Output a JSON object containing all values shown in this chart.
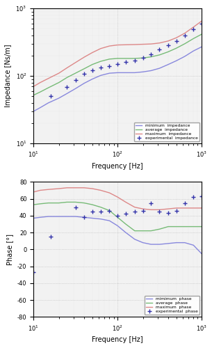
{
  "freq_model": [
    10,
    12,
    15,
    20,
    25,
    31.5,
    40,
    50,
    63,
    80,
    100,
    125,
    160,
    200,
    250,
    315,
    400,
    500,
    630,
    800,
    1000
  ],
  "imp_min": [
    30,
    34,
    40,
    47,
    55,
    65,
    78,
    90,
    102,
    110,
    112,
    112,
    112,
    115,
    120,
    130,
    148,
    168,
    195,
    235,
    270
  ],
  "imp_avg": [
    52,
    58,
    67,
    80,
    95,
    110,
    128,
    148,
    165,
    178,
    182,
    182,
    182,
    185,
    192,
    205,
    228,
    258,
    300,
    358,
    415
  ],
  "imp_max": [
    70,
    80,
    92,
    110,
    132,
    158,
    190,
    222,
    255,
    278,
    288,
    290,
    292,
    295,
    298,
    308,
    330,
    368,
    430,
    530,
    650
  ],
  "freq_exp_imp": [
    16,
    25,
    31.5,
    40,
    50,
    63,
    80,
    100,
    125,
    160,
    200,
    250,
    315,
    400,
    500,
    630,
    800,
    1000
  ],
  "exp_imp": [
    50,
    68,
    88,
    108,
    122,
    132,
    140,
    150,
    160,
    168,
    188,
    212,
    248,
    282,
    332,
    398,
    498,
    598
  ],
  "phase_min": [
    37,
    38,
    39,
    39,
    39,
    39,
    38,
    37,
    36,
    34,
    28,
    20,
    12,
    8,
    6,
    6,
    7,
    8,
    8,
    5,
    -5
  ],
  "phase_avg": [
    53,
    54,
    55,
    55,
    56,
    56,
    55,
    53,
    50,
    46,
    38,
    30,
    22,
    22,
    22,
    24,
    27,
    27,
    27,
    27,
    27
  ],
  "phase_max": [
    68,
    70,
    71,
    72,
    73,
    73,
    73,
    72,
    70,
    67,
    62,
    56,
    50,
    48,
    47,
    47,
    48,
    49,
    49,
    49,
    49
  ],
  "freq_exp_phase": [
    10,
    16,
    31.5,
    40,
    50,
    63,
    80,
    100,
    125,
    160,
    200,
    250,
    315,
    400,
    500,
    630,
    800,
    1000
  ],
  "exp_phase": [
    -27,
    15,
    50,
    38,
    45,
    45,
    46,
    40,
    42,
    45,
    46,
    55,
    45,
    43,
    46,
    55,
    62,
    63
  ],
  "line_min_color": "#8888dd",
  "line_avg_color": "#77bb77",
  "line_max_color": "#dd8888",
  "exp_color": "#3333aa",
  "imp_ylim_lo": 10,
  "imp_ylim_hi": 1000,
  "phase_ylim_lo": -80,
  "phase_ylim_hi": 80,
  "freq_xlim_lo": 10,
  "freq_xlim_hi": 1000,
  "imp_ylabel": "Impedance [Ns/m]",
  "phase_ylabel": "Phase [°]",
  "xlabel": "Frequency [Hz]",
  "legend_imp": [
    "minimum  impedance",
    "average  impedance",
    "maximum  impedance",
    "experimental  impedance"
  ],
  "legend_phase": [
    "mimimum  phase",
    "average  phase",
    "maximum  phase",
    "experimental  phase"
  ],
  "bg_color": "#f2f2f2"
}
